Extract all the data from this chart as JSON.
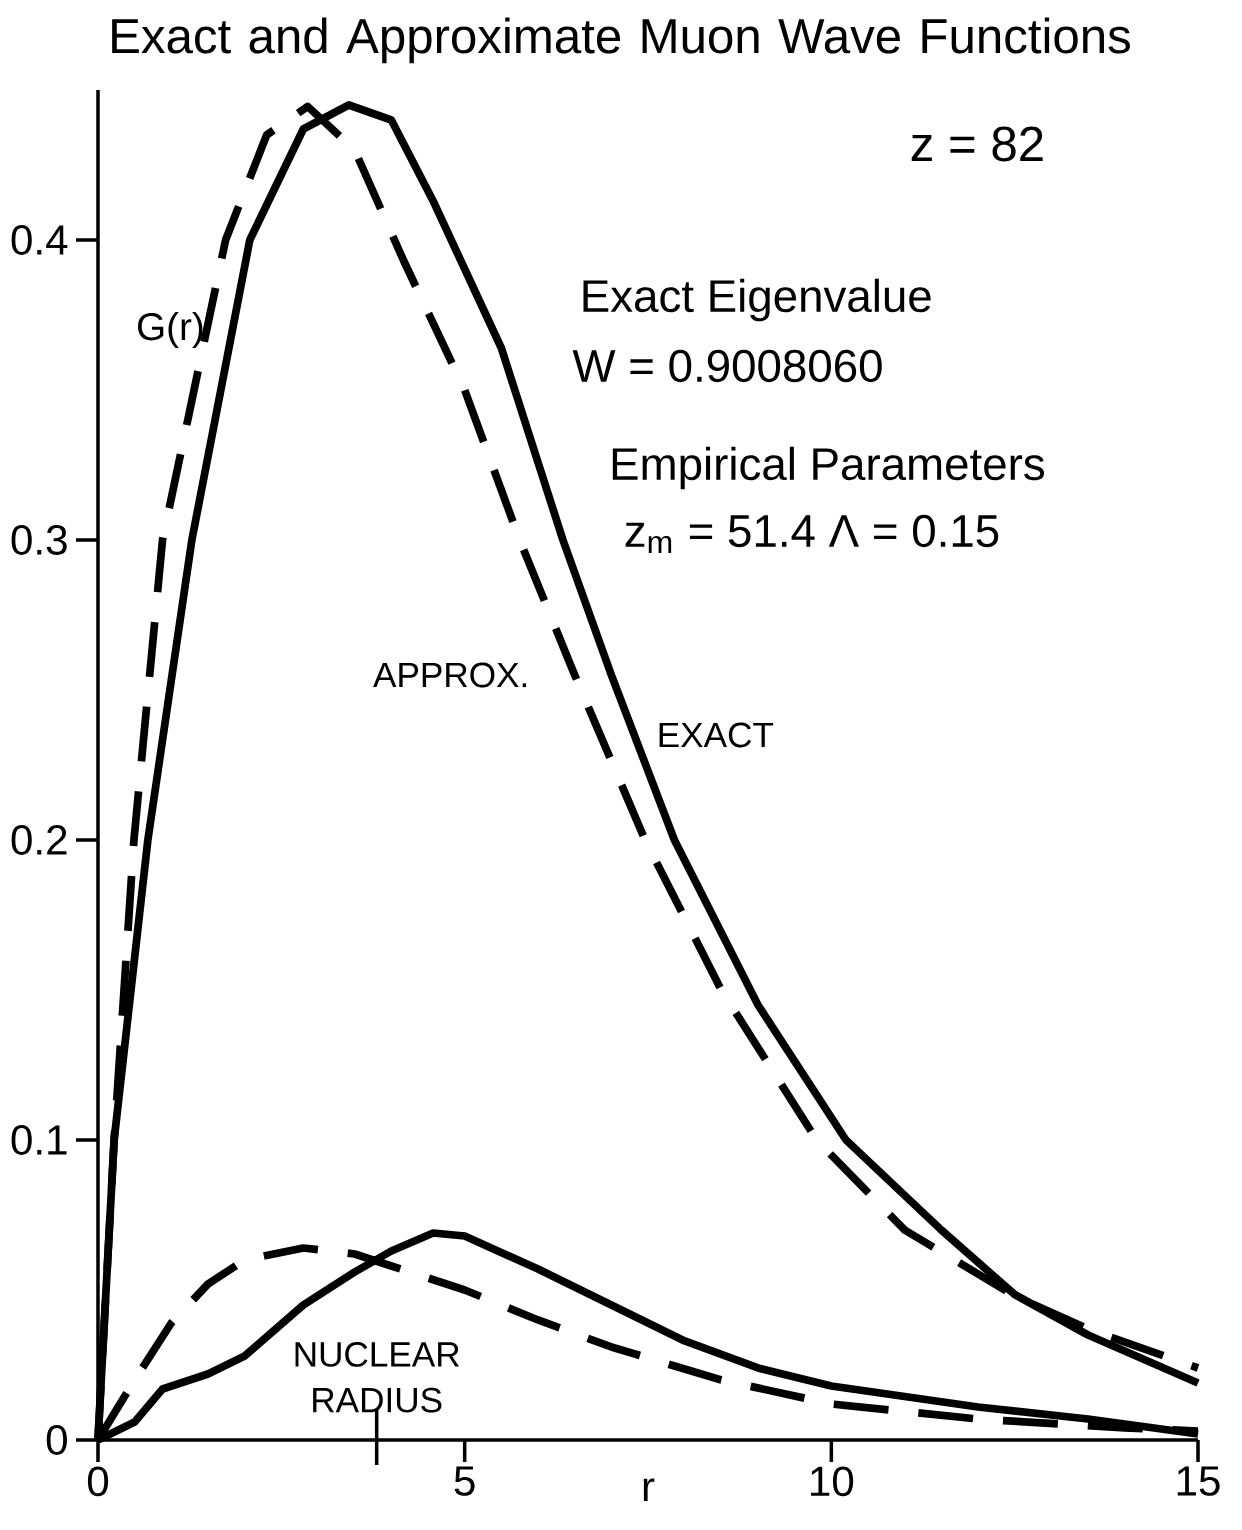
{
  "chart_data": {
    "type": "line",
    "title": "Exact and Approximate Muon Wave Functions",
    "xlabel": "r",
    "xlim": [
      0,
      15
    ],
    "ylim": [
      0,
      0.45
    ],
    "xticks": [
      0,
      5,
      10,
      15
    ],
    "yticks": [
      0,
      0.1,
      0.2,
      0.3,
      0.4
    ],
    "grid": false,
    "legend": false,
    "marker": "none",
    "ref_lines": [
      {
        "axis": "x",
        "value": 3.8,
        "label": "NUCLEAR RADIUS"
      }
    ],
    "annotations": [
      "z = 82",
      "G(r)",
      "Exact Eigenvalue",
      "W = 0.9008060",
      "Empirical Parameters",
      "z$_{m}$ = 51.4     Λ = 0.15"
    ],
    "series": [
      {
        "name": "EXACT",
        "color": "#000000",
        "line_style": "solid",
        "x": [
          0,
          0.22,
          0.68,
          1.28,
          2.07,
          2.8,
          3.42,
          4.0,
          4.57,
          5.5,
          6.34,
          7.0,
          7.86,
          9.0,
          10.2,
          11.5,
          12.5,
          13.5,
          15
        ],
        "values": [
          0,
          0.1,
          0.2,
          0.3,
          0.4,
          0.437,
          0.445,
          0.44,
          0.413,
          0.364,
          0.3,
          0.255,
          0.2,
          0.145,
          0.1,
          0.07,
          0.0485,
          0.035,
          0.019
        ]
      },
      {
        "name": "APPROX.",
        "color": "#000000",
        "line_style": "dashed",
        "x": [
          0,
          0.22,
          0.49,
          0.88,
          1.74,
          2.3,
          2.86,
          3.5,
          4.17,
          5.0,
          5.75,
          6.5,
          7.46,
          8.5,
          9.8,
          11,
          12.5,
          13.5,
          15
        ],
        "values": [
          0,
          0.1,
          0.2,
          0.3,
          0.4,
          0.435,
          0.4445,
          0.43,
          0.393,
          0.35,
          0.3,
          0.255,
          0.2,
          0.15,
          0.1,
          0.07,
          0.048,
          0.037,
          0.024
        ]
      },
      {
        "color": "#000000",
        "line_style": "solid",
        "x": [
          0,
          0.5,
          0.88,
          1.5,
          2,
          2.8,
          3.5,
          4.0,
          4.57,
          5,
          6,
          7,
          8,
          9,
          10,
          12,
          13.5,
          15
        ],
        "values": [
          0,
          0.006,
          0.017,
          0.022,
          0.028,
          0.045,
          0.056,
          0.063,
          0.069,
          0.068,
          0.057,
          0.045,
          0.033,
          0.024,
          0.018,
          0.011,
          0.007,
          0.002
        ]
      },
      {
        "color": "#000000",
        "line_style": "dashed",
        "x": [
          0,
          0.5,
          1,
          1.5,
          2,
          2.8,
          3.5,
          4,
          5,
          6,
          7,
          8.5,
          10,
          12,
          14,
          15
        ],
        "values": [
          0,
          0.02,
          0.039,
          0.052,
          0.06,
          0.064,
          0.062,
          0.058,
          0.05,
          0.04,
          0.031,
          0.02,
          0.012,
          0.007,
          0.004,
          0.003
        ]
      }
    ]
  }
}
